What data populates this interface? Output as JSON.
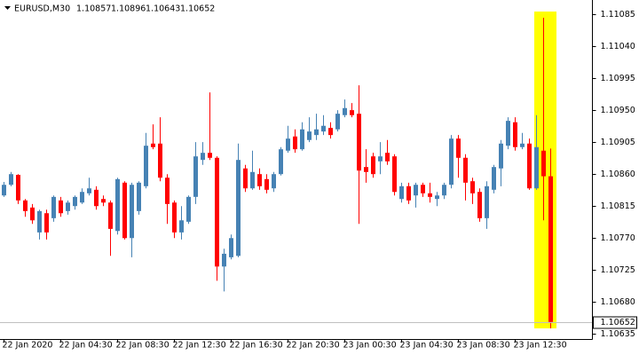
{
  "chart_data": {
    "type": "candlestick",
    "title": "EURUSD,M30",
    "categories": [
      "22 Jan 2020",
      null,
      null,
      null,
      null,
      null,
      null,
      null,
      "22 Jan 04:30",
      null,
      null,
      null,
      null,
      null,
      null,
      null,
      "22 Jan 08:30",
      null,
      null,
      null,
      null,
      null,
      null,
      null,
      "22 Jan 12:30",
      null,
      null,
      null,
      null,
      null,
      null,
      null,
      "22 Jan 16:30",
      null,
      null,
      null,
      null,
      null,
      null,
      null,
      "22 Jan 20:30",
      null,
      null,
      null,
      null,
      null,
      null,
      null,
      "23 Jan 00:30",
      null,
      null,
      null,
      null,
      null,
      null,
      null,
      "23 Jan 04:30",
      null,
      null,
      null,
      null,
      null,
      null,
      null,
      "23 Jan 08:30",
      null,
      null,
      null,
      null,
      null,
      null,
      null,
      "23 Jan 12:30",
      null,
      null,
      null,
      null,
      null
    ],
    "open": [
      1.1083,
      1.10845,
      1.10859,
      1.10823,
      1.10813,
      1.10778,
      1.10805,
      1.10798,
      1.10823,
      1.10808,
      1.10815,
      1.1082,
      1.10833,
      1.10838,
      1.10825,
      1.1082,
      1.1078,
      1.10848,
      1.1077,
      1.10808,
      1.10843,
      1.10903,
      1.10903,
      1.10855,
      1.1082,
      1.10778,
      1.10793,
      1.10828,
      1.1088,
      1.1089,
      1.10883,
      1.1073,
      1.10743,
      1.10745,
      1.10868,
      1.1084,
      1.1086,
      1.10853,
      1.1084,
      1.1086,
      1.10893,
      1.10913,
      1.10895,
      1.10908,
      1.10915,
      1.1092,
      1.10925,
      1.10923,
      1.10943,
      1.1095,
      1.10945,
      1.1087,
      1.10885,
      1.10878,
      1.1089,
      1.10885,
      1.10825,
      1.10843,
      1.1083,
      1.10845,
      1.10833,
      1.10825,
      1.1083,
      1.10845,
      1.1091,
      1.10883,
      1.1085,
      1.10835,
      1.10798,
      1.10838,
      1.10868,
      1.109,
      1.10933,
      1.10898,
      1.10903,
      1.1084,
      1.10893,
      1.10857
    ],
    "high": [
      1.10849,
      1.10863,
      1.1086,
      1.10825,
      1.10818,
      1.1081,
      1.1081,
      1.1083,
      1.10828,
      1.10823,
      1.1083,
      1.1084,
      1.10855,
      1.10843,
      1.1083,
      1.10823,
      1.10855,
      1.1085,
      1.10848,
      1.1085,
      1.10918,
      1.1093,
      1.1094,
      1.1086,
      1.10823,
      1.10815,
      1.1083,
      1.10905,
      1.10905,
      1.10975,
      1.10885,
      1.10755,
      1.10775,
      1.10903,
      1.10873,
      1.10893,
      1.10868,
      1.1086,
      1.10863,
      1.10898,
      1.10928,
      1.10923,
      1.10933,
      1.1094,
      1.10945,
      1.10943,
      1.10933,
      1.1095,
      1.10965,
      1.1096,
      1.10985,
      1.10895,
      1.1089,
      1.10905,
      1.10908,
      1.10888,
      1.10848,
      1.10848,
      1.10848,
      1.10848,
      1.10848,
      1.10835,
      1.10848,
      1.10915,
      1.10915,
      1.10888,
      1.10855,
      1.1084,
      1.1085,
      1.10873,
      1.10908,
      1.1094,
      1.1094,
      1.10918,
      1.1091,
      1.10943,
      1.1108,
      1.10896
    ],
    "low": [
      1.10828,
      1.10843,
      1.10818,
      1.108,
      1.1079,
      1.10768,
      1.10768,
      1.10793,
      1.108,
      1.10803,
      1.1081,
      1.10818,
      1.1083,
      1.1081,
      1.10815,
      1.10745,
      1.10775,
      1.10768,
      1.10743,
      1.10803,
      1.1084,
      1.10895,
      1.1085,
      1.1079,
      1.1077,
      1.10768,
      1.1079,
      1.10818,
      1.10873,
      1.1088,
      1.1071,
      1.10695,
      1.1074,
      1.10743,
      1.10835,
      1.10838,
      1.10838,
      1.10833,
      1.10835,
      1.10858,
      1.1089,
      1.1089,
      1.10893,
      1.10905,
      1.10908,
      1.10915,
      1.1091,
      1.1092,
      1.1094,
      1.1094,
      1.1079,
      1.10848,
      1.10855,
      1.1086,
      1.10873,
      1.1083,
      1.1082,
      1.10818,
      1.10813,
      1.10828,
      1.1082,
      1.10815,
      1.10825,
      1.1084,
      1.10855,
      1.10823,
      1.10818,
      1.10793,
      1.10783,
      1.10833,
      1.10843,
      1.10895,
      1.10893,
      1.10895,
      1.10838,
      1.10838,
      1.10795,
      1.10643
    ],
    "close": [
      1.10845,
      1.1086,
      1.10823,
      1.10808,
      1.10795,
      1.10808,
      1.10778,
      1.10828,
      1.10805,
      1.1082,
      1.10828,
      1.10835,
      1.1084,
      1.10815,
      1.1082,
      1.10783,
      1.10853,
      1.1077,
      1.10845,
      1.10848,
      1.109,
      1.10898,
      1.10855,
      1.10818,
      1.10778,
      1.10795,
      1.10828,
      1.10885,
      1.1089,
      1.10883,
      1.1073,
      1.10748,
      1.1077,
      1.1088,
      1.1084,
      1.10863,
      1.10843,
      1.10838,
      1.1086,
      1.10895,
      1.1091,
      1.10895,
      1.10923,
      1.1092,
      1.10923,
      1.10928,
      1.10915,
      1.10945,
      1.10953,
      1.10943,
      1.10865,
      1.10863,
      1.1086,
      1.10885,
      1.10878,
      1.10835,
      1.10843,
      1.10823,
      1.10845,
      1.10833,
      1.10828,
      1.1083,
      1.10845,
      1.1091,
      1.10883,
      1.10848,
      1.10833,
      1.10798,
      1.10843,
      1.1087,
      1.10903,
      1.10935,
      1.10898,
      1.10903,
      1.1084,
      1.10898,
      1.10857,
      1.10652
    ],
    "up_color": "#4682b4",
    "down_color": "#ff0000",
    "ylim": [
      1.10628,
      1.11105
    ],
    "yticks": [
      1.11085,
      {
        "value": 1.1104,
        "label": "1.11040"
      },
      1.10995,
      {
        "value": 1.1095,
        "label": "1.10950"
      },
      1.10905,
      {
        "value": 1.1086,
        "label": "1.10860"
      },
      1.10815,
      {
        "value": 1.1077,
        "label": "1.10770"
      },
      1.10725,
      {
        "value": 1.1068,
        "label": "1.10680"
      },
      1.10635
    ]
  }
}
